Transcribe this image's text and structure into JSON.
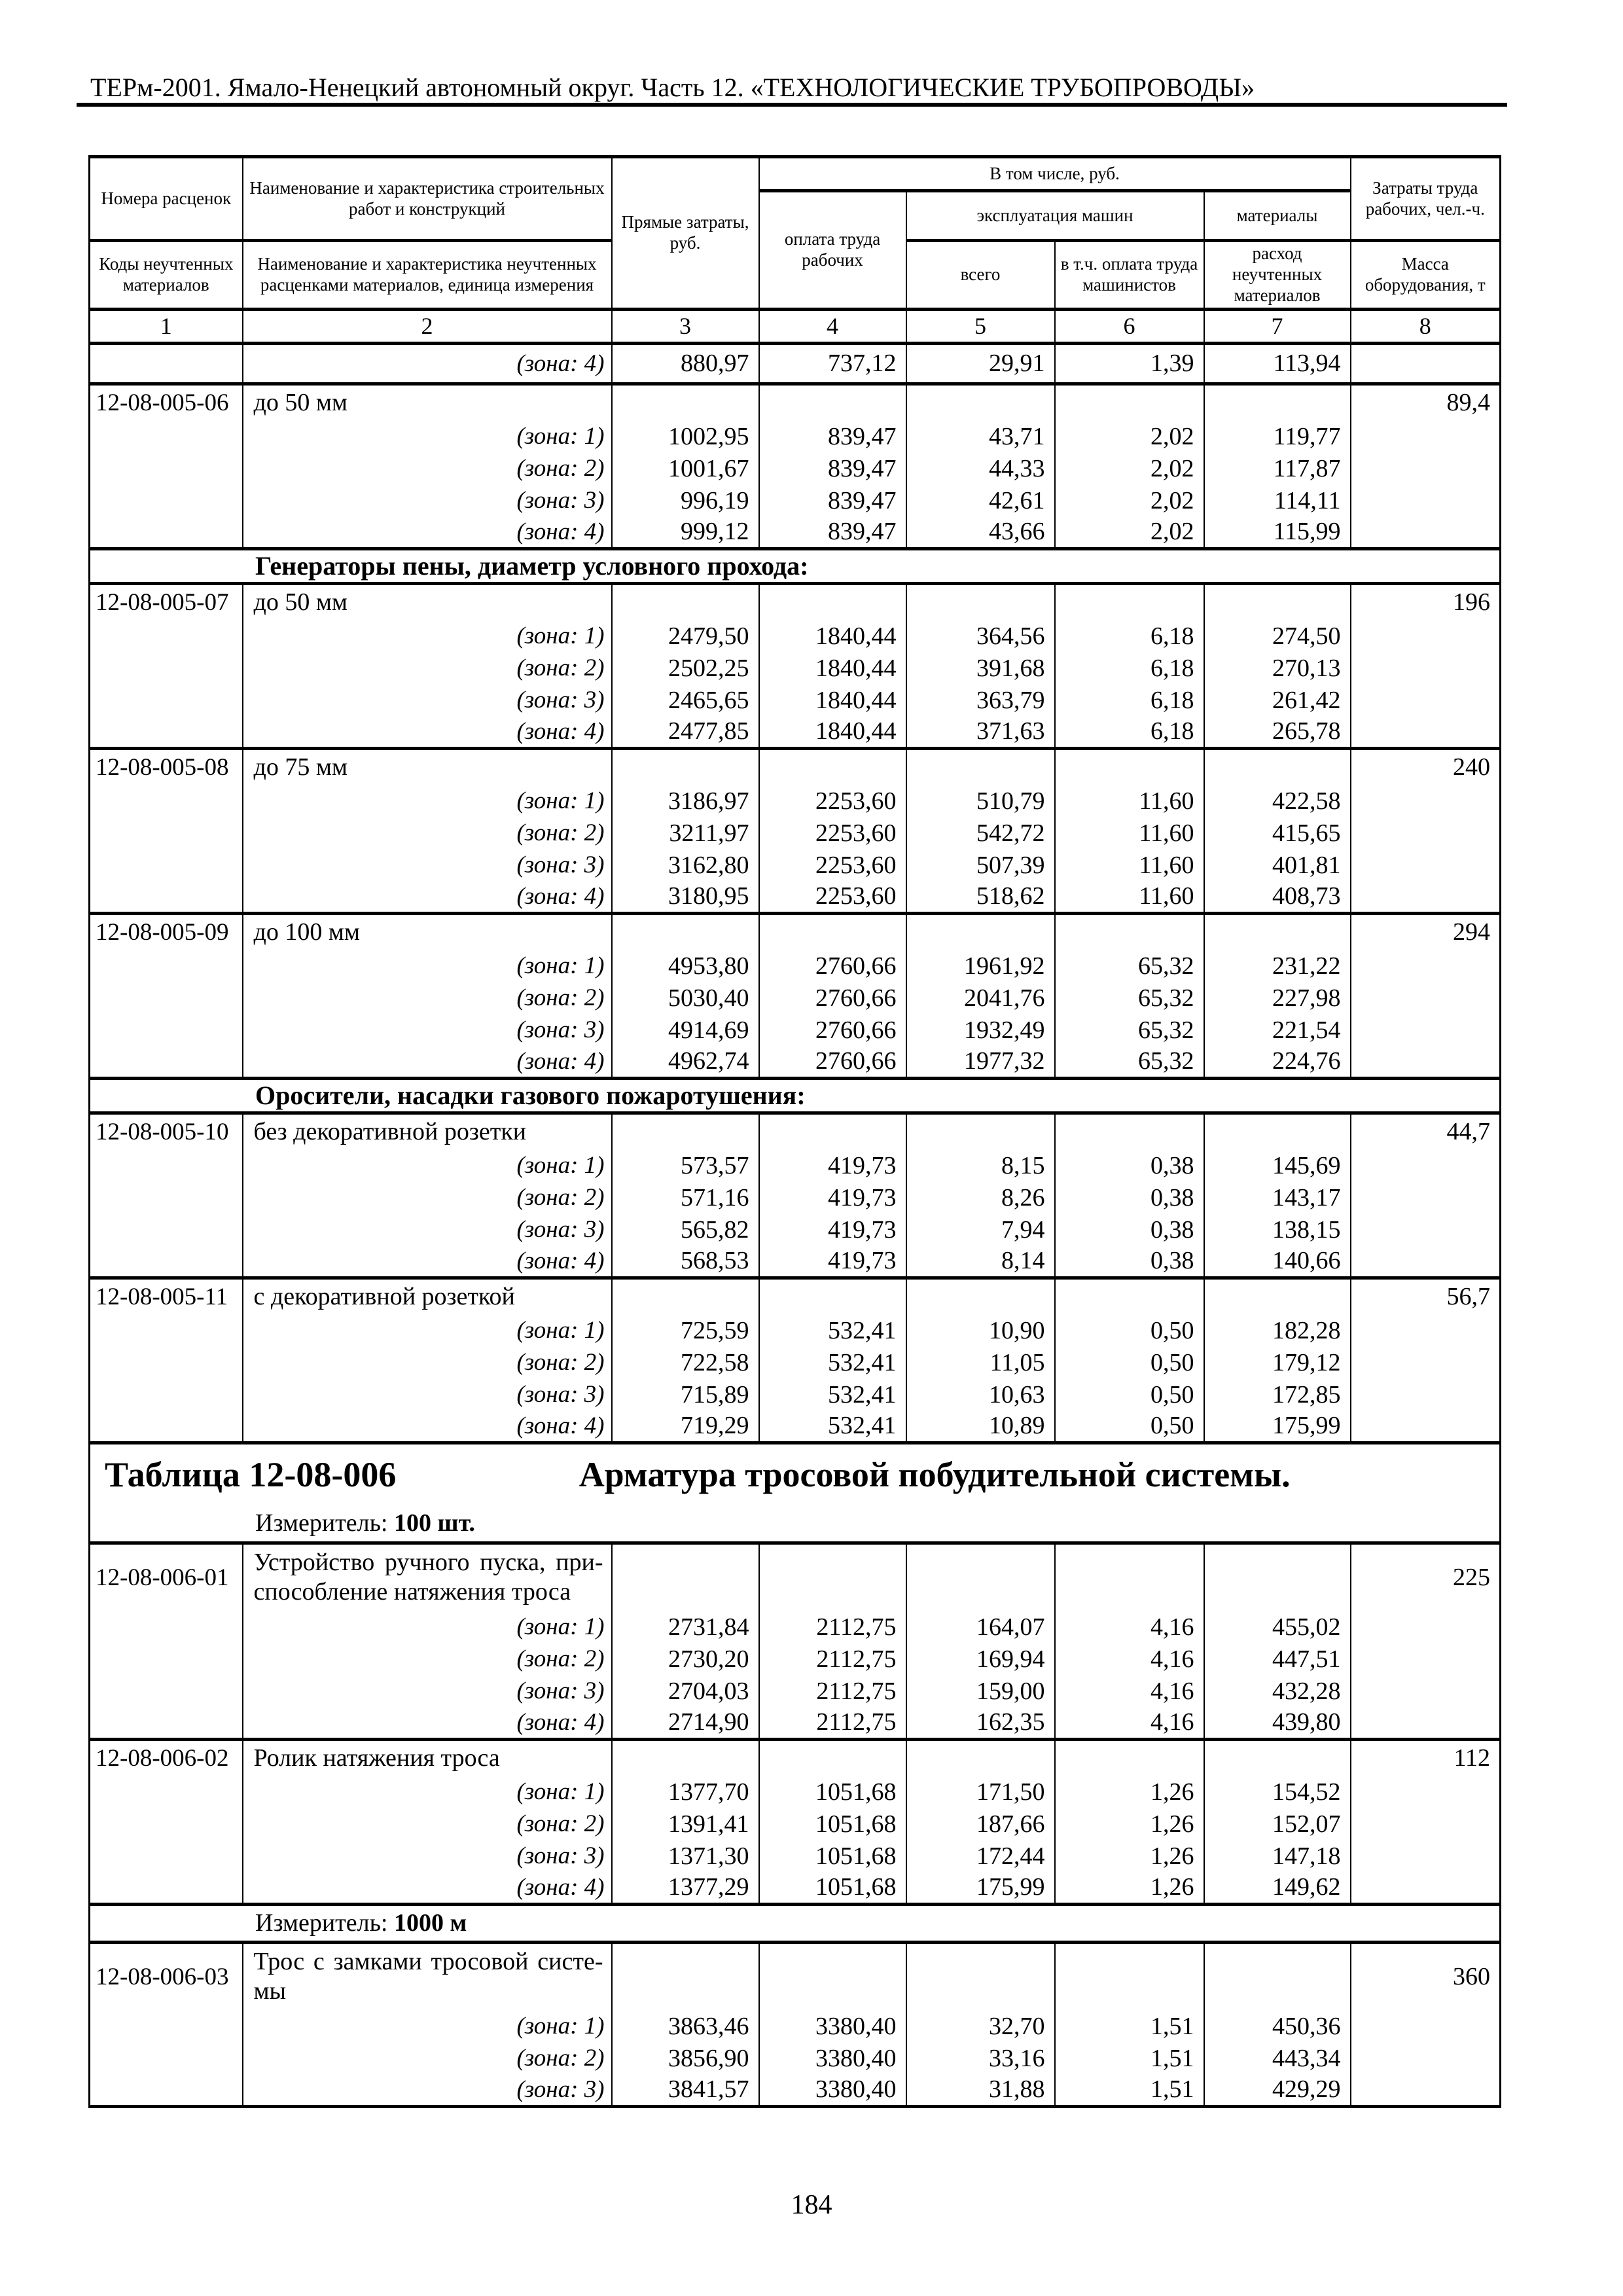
{
  "colors": {
    "ink": "#000000",
    "paper": "#ffffff"
  },
  "page": {
    "header": "ТЕРм-2001. Ямало-Ненецкий автономный округ. Часть 12. «ТЕХНОЛОГИЧЕСКИЕ ТРУБОПРОВОДЫ»",
    "page_number": "184"
  },
  "table": {
    "header": {
      "col1_top": "Номера расценок",
      "col1_bottom": "Коды неучтенных материалов",
      "col2_top": "Наименование и характеристика строительных работ и конструкций",
      "col2_bottom": "Наименование и характеристика неучтенных расценками материалов, единица измерения",
      "col3": "Прямые затраты, руб.",
      "incl_band": "В том числе, руб.",
      "col4": "оплата труда рабочих",
      "machines_band": "эксплуатация машин",
      "col5": "всего",
      "col6": "в т.ч. оплата труда машинистов",
      "col7_top": "материалы",
      "col7_bottom": "расход неучтенных материалов",
      "col8_top": "Затраты труда рабочих, чел.-ч.",
      "col8_bottom": "Масса оборудования, т",
      "col_numbers": [
        "1",
        "2",
        "3",
        "4",
        "5",
        "6",
        "7",
        "8"
      ]
    },
    "rows": [
      {
        "type": "zone",
        "zone": "(зона: 4)",
        "values": [
          "880,97",
          "737,12",
          "29,91",
          "1,39",
          "113,94"
        ]
      },
      {
        "type": "rate",
        "code": "12-08-005-06",
        "desc": [
          "до 50 мм"
        ],
        "mass": "89,4"
      },
      {
        "type": "zone",
        "zone": "(зона: 1)",
        "values": [
          "1002,95",
          "839,47",
          "43,71",
          "2,02",
          "119,77"
        ]
      },
      {
        "type": "zone",
        "zone": "(зона: 2)",
        "values": [
          "1001,67",
          "839,47",
          "44,33",
          "2,02",
          "117,87"
        ]
      },
      {
        "type": "zone",
        "zone": "(зона: 3)",
        "values": [
          "996,19",
          "839,47",
          "42,61",
          "2,02",
          "114,11"
        ]
      },
      {
        "type": "zone",
        "zone": "(зона: 4)",
        "values": [
          "999,12",
          "839,47",
          "43,66",
          "2,02",
          "115,99"
        ]
      },
      {
        "type": "section",
        "text": "Генераторы пены, диаметр условного прохода:"
      },
      {
        "type": "rate",
        "code": "12-08-005-07",
        "desc": [
          "до 50 мм"
        ],
        "mass": "196"
      },
      {
        "type": "zone",
        "zone": "(зона: 1)",
        "values": [
          "2479,50",
          "1840,44",
          "364,56",
          "6,18",
          "274,50"
        ]
      },
      {
        "type": "zone",
        "zone": "(зона: 2)",
        "values": [
          "2502,25",
          "1840,44",
          "391,68",
          "6,18",
          "270,13"
        ]
      },
      {
        "type": "zone",
        "zone": "(зона: 3)",
        "values": [
          "2465,65",
          "1840,44",
          "363,79",
          "6,18",
          "261,42"
        ]
      },
      {
        "type": "zone",
        "zone": "(зона: 4)",
        "values": [
          "2477,85",
          "1840,44",
          "371,63",
          "6,18",
          "265,78"
        ]
      },
      {
        "type": "rate",
        "code": "12-08-005-08",
        "desc": [
          "до 75 мм"
        ],
        "mass": "240"
      },
      {
        "type": "zone",
        "zone": "(зона: 1)",
        "values": [
          "3186,97",
          "2253,60",
          "510,79",
          "11,60",
          "422,58"
        ]
      },
      {
        "type": "zone",
        "zone": "(зона: 2)",
        "values": [
          "3211,97",
          "2253,60",
          "542,72",
          "11,60",
          "415,65"
        ]
      },
      {
        "type": "zone",
        "zone": "(зона: 3)",
        "values": [
          "3162,80",
          "2253,60",
          "507,39",
          "11,60",
          "401,81"
        ]
      },
      {
        "type": "zone",
        "zone": "(зона: 4)",
        "values": [
          "3180,95",
          "2253,60",
          "518,62",
          "11,60",
          "408,73"
        ]
      },
      {
        "type": "rate",
        "code": "12-08-005-09",
        "desc": [
          "до 100 мм"
        ],
        "mass": "294"
      },
      {
        "type": "zone",
        "zone": "(зона: 1)",
        "values": [
          "4953,80",
          "2760,66",
          "1961,92",
          "65,32",
          "231,22"
        ]
      },
      {
        "type": "zone",
        "zone": "(зона: 2)",
        "values": [
          "5030,40",
          "2760,66",
          "2041,76",
          "65,32",
          "227,98"
        ]
      },
      {
        "type": "zone",
        "zone": "(зона: 3)",
        "values": [
          "4914,69",
          "2760,66",
          "1932,49",
          "65,32",
          "221,54"
        ]
      },
      {
        "type": "zone",
        "zone": "(зона: 4)",
        "values": [
          "4962,74",
          "2760,66",
          "1977,32",
          "65,32",
          "224,76"
        ]
      },
      {
        "type": "section",
        "text": "Оросители, насадки газового пожаротушения:"
      },
      {
        "type": "rate",
        "code": "12-08-005-10",
        "desc": [
          "без декоративной розетки"
        ],
        "mass": "44,7"
      },
      {
        "type": "zone",
        "zone": "(зона: 1)",
        "values": [
          "573,57",
          "419,73",
          "8,15",
          "0,38",
          "145,69"
        ]
      },
      {
        "type": "zone",
        "zone": "(зона: 2)",
        "values": [
          "571,16",
          "419,73",
          "8,26",
          "0,38",
          "143,17"
        ]
      },
      {
        "type": "zone",
        "zone": "(зона: 3)",
        "values": [
          "565,82",
          "419,73",
          "7,94",
          "0,38",
          "138,15"
        ]
      },
      {
        "type": "zone",
        "zone": "(зона: 4)",
        "values": [
          "568,53",
          "419,73",
          "8,14",
          "0,38",
          "140,66"
        ]
      },
      {
        "type": "rate",
        "code": "12-08-005-11",
        "desc": [
          "с декоративной розеткой"
        ],
        "mass": "56,7"
      },
      {
        "type": "zone",
        "zone": "(зона: 1)",
        "values": [
          "725,59",
          "532,41",
          "10,90",
          "0,50",
          "182,28"
        ]
      },
      {
        "type": "zone",
        "zone": "(зона: 2)",
        "values": [
          "722,58",
          "532,41",
          "11,05",
          "0,50",
          "179,12"
        ]
      },
      {
        "type": "zone",
        "zone": "(зона: 3)",
        "values": [
          "715,89",
          "532,41",
          "10,63",
          "0,50",
          "172,85"
        ]
      },
      {
        "type": "zone",
        "zone": "(зона: 4)",
        "values": [
          "719,29",
          "532,41",
          "10,89",
          "0,50",
          "175,99"
        ]
      },
      {
        "type": "title",
        "num": "Таблица 12-08-006",
        "name": "Арматура тросовой побудительной системы."
      },
      {
        "type": "meter",
        "label": "Измеритель:",
        "value": "100 шт."
      },
      {
        "type": "rate",
        "code": "12-08-006-01",
        "desc": [
          "Устройство ручного пуска, при-",
          "способление натяжения троса"
        ],
        "mass": "225"
      },
      {
        "type": "zone",
        "zone": "(зона: 1)",
        "values": [
          "2731,84",
          "2112,75",
          "164,07",
          "4,16",
          "455,02"
        ]
      },
      {
        "type": "zone",
        "zone": "(зона: 2)",
        "values": [
          "2730,20",
          "2112,75",
          "169,94",
          "4,16",
          "447,51"
        ]
      },
      {
        "type": "zone",
        "zone": "(зона: 3)",
        "values": [
          "2704,03",
          "2112,75",
          "159,00",
          "4,16",
          "432,28"
        ]
      },
      {
        "type": "zone",
        "zone": "(зона: 4)",
        "values": [
          "2714,90",
          "2112,75",
          "162,35",
          "4,16",
          "439,80"
        ]
      },
      {
        "type": "rate",
        "code": "12-08-006-02",
        "desc": [
          "Ролик натяжения троса"
        ],
        "mass": "112"
      },
      {
        "type": "zone",
        "zone": "(зона: 1)",
        "values": [
          "1377,70",
          "1051,68",
          "171,50",
          "1,26",
          "154,52"
        ]
      },
      {
        "type": "zone",
        "zone": "(зона: 2)",
        "values": [
          "1391,41",
          "1051,68",
          "187,66",
          "1,26",
          "152,07"
        ]
      },
      {
        "type": "zone",
        "zone": "(зона: 3)",
        "values": [
          "1371,30",
          "1051,68",
          "172,44",
          "1,26",
          "147,18"
        ]
      },
      {
        "type": "zone",
        "zone": "(зона: 4)",
        "values": [
          "1377,29",
          "1051,68",
          "175,99",
          "1,26",
          "149,62"
        ]
      },
      {
        "type": "meter",
        "label": "Измеритель:",
        "value": "1000 м"
      },
      {
        "type": "rate",
        "code": "12-08-006-03",
        "desc": [
          "Трос с замками тросовой систе-",
          "мы"
        ],
        "mass": "360"
      },
      {
        "type": "zone",
        "zone": "(зона: 1)",
        "values": [
          "3863,46",
          "3380,40",
          "32,70",
          "1,51",
          "450,36"
        ]
      },
      {
        "type": "zone",
        "zone": "(зона: 2)",
        "values": [
          "3856,90",
          "3380,40",
          "33,16",
          "1,51",
          "443,34"
        ]
      },
      {
        "type": "zone",
        "zone": "(зона: 3)",
        "values": [
          "3841,57",
          "3380,40",
          "31,88",
          "1,51",
          "429,29"
        ]
      }
    ]
  }
}
